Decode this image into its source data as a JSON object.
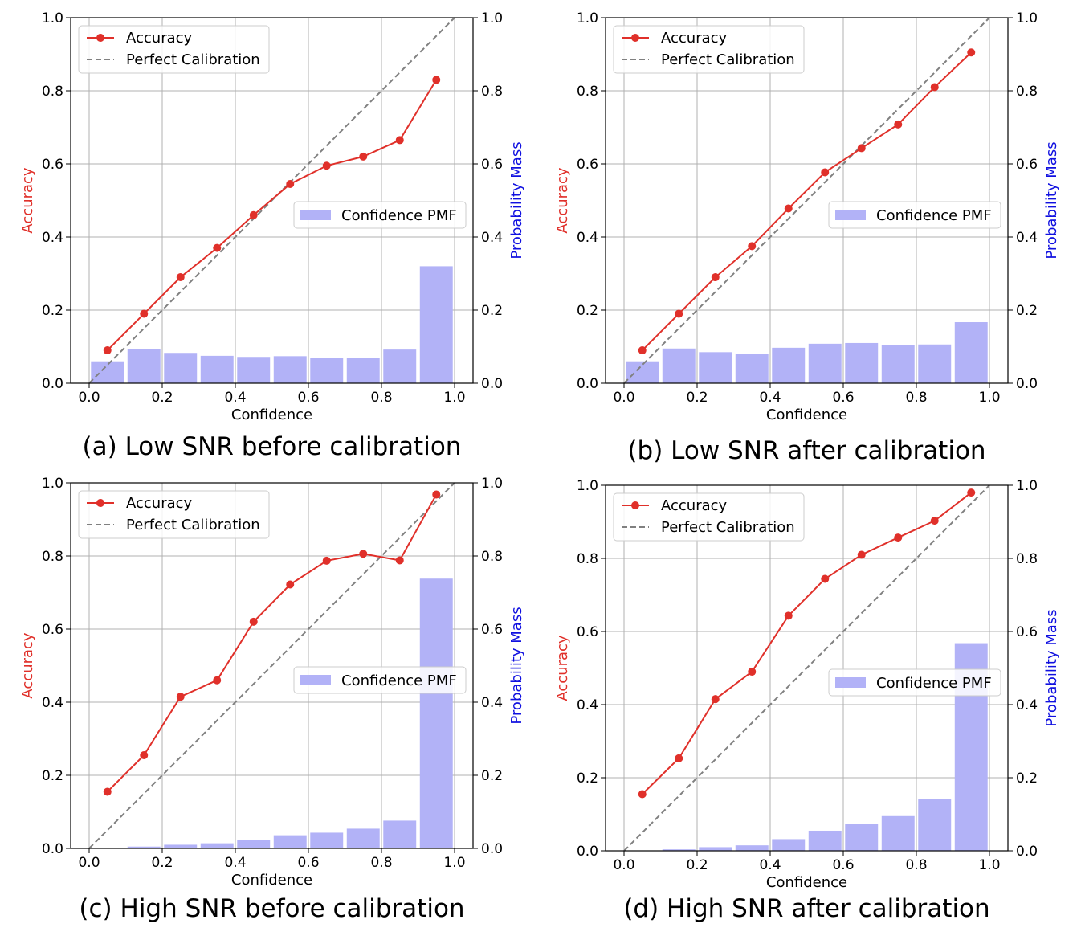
{
  "chart_data": [
    {
      "type": "bar+line",
      "caption": "(a) Low SNR before calibration",
      "xlabel": "Confidence",
      "ylabel": "Accuracy",
      "y2label": "Probability Mass",
      "xlim": [
        0,
        1
      ],
      "ylim": [
        0,
        1
      ],
      "y2lim": [
        0,
        1
      ],
      "ticks": [
        "0.0",
        "0.2",
        "0.4",
        "0.6",
        "0.8",
        "1.0"
      ],
      "grid": true,
      "legend_line": {
        "position": "upper-left",
        "entries": [
          "Accuracy",
          "Perfect Calibration"
        ]
      },
      "legend_bar": {
        "position": "center-right",
        "entries": [
          "Confidence PMF"
        ]
      },
      "x": [
        0.05,
        0.15,
        0.25,
        0.35,
        0.45,
        0.55,
        0.65,
        0.75,
        0.85,
        0.95
      ],
      "accuracy": [
        0.09,
        0.19,
        0.29,
        0.37,
        0.46,
        0.545,
        0.595,
        0.62,
        0.665,
        0.83
      ],
      "pmf": [
        0.06,
        0.093,
        0.083,
        0.075,
        0.072,
        0.074,
        0.07,
        0.069,
        0.092,
        0.32
      ],
      "colors": {
        "accuracy": "#e0302a",
        "pmf": "#b2b2f7",
        "perfect": "#808080",
        "y2label": "#1010e0"
      }
    },
    {
      "type": "bar+line",
      "caption": "(b) Low SNR after calibration",
      "xlabel": "Confidence",
      "ylabel": "Accuracy",
      "y2label": "Probability Mass",
      "xlim": [
        0,
        1
      ],
      "ylim": [
        0,
        1
      ],
      "y2lim": [
        0,
        1
      ],
      "ticks": [
        "0.0",
        "0.2",
        "0.4",
        "0.6",
        "0.8",
        "1.0"
      ],
      "grid": true,
      "legend_line": {
        "position": "upper-left",
        "entries": [
          "Accuracy",
          "Perfect Calibration"
        ]
      },
      "legend_bar": {
        "position": "center-right",
        "entries": [
          "Confidence PMF"
        ]
      },
      "x": [
        0.05,
        0.15,
        0.25,
        0.35,
        0.45,
        0.55,
        0.65,
        0.75,
        0.85,
        0.95
      ],
      "accuracy": [
        0.09,
        0.19,
        0.29,
        0.375,
        0.478,
        0.577,
        0.643,
        0.708,
        0.81,
        0.905
      ],
      "pmf": [
        0.06,
        0.095,
        0.085,
        0.08,
        0.097,
        0.108,
        0.11,
        0.104,
        0.106,
        0.167
      ],
      "colors": {
        "accuracy": "#e0302a",
        "pmf": "#b2b2f7",
        "perfect": "#808080",
        "y2label": "#1010e0"
      }
    },
    {
      "type": "bar+line",
      "caption": "(c) High SNR before calibration",
      "xlabel": "Confidence",
      "ylabel": "Accuracy",
      "y2label": "Probability Mass",
      "xlim": [
        0,
        1
      ],
      "ylim": [
        0,
        1
      ],
      "y2lim": [
        0,
        1
      ],
      "ticks": [
        "0.0",
        "0.2",
        "0.4",
        "0.6",
        "0.8",
        "1.0"
      ],
      "grid": true,
      "legend_line": {
        "position": "upper-left",
        "entries": [
          "Accuracy",
          "Perfect Calibration"
        ]
      },
      "legend_bar": {
        "position": "center-right",
        "entries": [
          "Confidence PMF"
        ]
      },
      "x": [
        0.05,
        0.15,
        0.25,
        0.35,
        0.45,
        0.55,
        0.65,
        0.75,
        0.85,
        0.95
      ],
      "accuracy": [
        0.155,
        0.255,
        0.415,
        0.46,
        0.62,
        0.722,
        0.787,
        0.806,
        0.788,
        0.968
      ],
      "pmf": [
        0.0,
        0.005,
        0.01,
        0.014,
        0.023,
        0.036,
        0.043,
        0.054,
        0.076,
        0.738
      ],
      "colors": {
        "accuracy": "#e0302a",
        "pmf": "#b2b2f7",
        "perfect": "#808080",
        "y2label": "#1010e0"
      }
    },
    {
      "type": "bar+line",
      "caption": "(d) High SNR after calibration",
      "xlabel": "Confidence",
      "ylabel": "Accuracy",
      "y2label": "Probability Mass",
      "xlim": [
        0,
        1
      ],
      "ylim": [
        0,
        1
      ],
      "y2lim": [
        0,
        1
      ],
      "ticks": [
        "0.0",
        "0.2",
        "0.4",
        "0.6",
        "0.8",
        "1.0"
      ],
      "grid": true,
      "legend_line": {
        "position": "upper-left",
        "entries": [
          "Accuracy",
          "Perfect Calibration"
        ]
      },
      "legend_bar": {
        "position": "center-right",
        "entries": [
          "Confidence PMF"
        ]
      },
      "x": [
        0.05,
        0.15,
        0.25,
        0.35,
        0.45,
        0.55,
        0.65,
        0.75,
        0.85,
        0.95
      ],
      "accuracy": [
        0.155,
        0.253,
        0.415,
        0.49,
        0.643,
        0.744,
        0.81,
        0.857,
        0.903,
        0.98
      ],
      "pmf": [
        0.0,
        0.004,
        0.01,
        0.015,
        0.032,
        0.055,
        0.073,
        0.095,
        0.142,
        0.568
      ],
      "colors": {
        "accuracy": "#e0302a",
        "pmf": "#b2b2f7",
        "perfect": "#808080",
        "y2label": "#1010e0"
      }
    }
  ]
}
